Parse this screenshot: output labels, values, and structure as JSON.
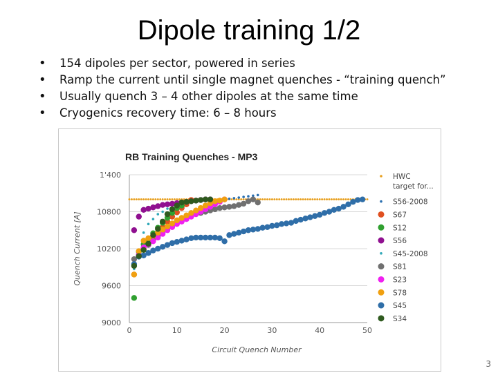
{
  "slide": {
    "title": "Dipole training 1/2",
    "bullets": [
      "154 dipoles per sector, powered in series",
      "Ramp the current until single magnet quenches -  “training quench”",
      "Usually quench 3 – 4 other dipoles at the same time",
      "Cryogenics recovery time:  6 – 8 hours"
    ],
    "page_number": "3"
  },
  "chart_data": {
    "type": "scatter",
    "title": "RB Training Quenches - MP3",
    "xlabel": "Circuit Quench Number",
    "ylabel": "Quench Current [A]",
    "xlim": [
      0,
      50
    ],
    "ylim": [
      9000,
      11400
    ],
    "xticks": [
      "0",
      "10",
      "20",
      "30",
      "40",
      "50"
    ],
    "yticks": [
      "9000",
      "9600",
      "10200",
      "10800",
      "11400"
    ],
    "ytick_labels": [
      "9000",
      "9600",
      "10200",
      "10800",
      "1'400"
    ],
    "grid": true,
    "legend_position": "right",
    "series": [
      {
        "name": "HWC target for...",
        "color": "#e8a020",
        "style": "dotted-line",
        "x": [
          0,
          50
        ],
        "y": [
          11000,
          11000
        ]
      },
      {
        "name": "S56-2008",
        "color": "#2a6fb0",
        "style": "small",
        "x": [
          19,
          20,
          21,
          22,
          23,
          24,
          25,
          26,
          27
        ],
        "y": [
          10980,
          11000,
          11010,
          11020,
          11030,
          11040,
          11050,
          11060,
          11070
        ]
      },
      {
        "name": "S67",
        "color": "#e05020",
        "style": "large",
        "x": [
          1,
          2,
          3,
          4,
          5,
          6,
          7,
          8,
          9,
          10,
          11,
          12,
          13
        ],
        "y": [
          9780,
          10080,
          10200,
          10300,
          10380,
          10460,
          10550,
          10640,
          10720,
          10790,
          10860,
          10920,
          10990
        ]
      },
      {
        "name": "S12",
        "color": "#30a030",
        "style": "large",
        "x": [
          1,
          2,
          3,
          4,
          5,
          6,
          7,
          8,
          9,
          10,
          11,
          12
        ],
        "y": [
          9400,
          10150,
          10270,
          10330,
          10450,
          10540,
          10620,
          10700,
          10780,
          10860,
          10900,
          10960
        ]
      },
      {
        "name": "S56",
        "color": "#901090",
        "style": "large",
        "x": [
          1,
          2,
          3,
          4,
          5,
          6,
          7,
          8,
          9,
          10,
          11,
          12,
          13,
          14,
          15,
          16,
          17
        ],
        "y": [
          10500,
          10720,
          10830,
          10850,
          10870,
          10890,
          10910,
          10920,
          10930,
          10940,
          10950,
          10960,
          10970,
          10980,
          10990,
          11000,
          11000
        ]
      },
      {
        "name": "S45-2008",
        "color": "#30a8b8",
        "style": "small",
        "x": [
          1,
          2,
          3,
          4,
          5,
          6,
          7,
          8
        ],
        "y": [
          9870,
          10120,
          10460,
          10600,
          10680,
          10760,
          10800,
          10850
        ]
      },
      {
        "name": "S81",
        "color": "#707070",
        "style": "large",
        "x": [
          1,
          2,
          3,
          4,
          5,
          6,
          7,
          8,
          9,
          10,
          11,
          12,
          13,
          14,
          15,
          16,
          17,
          18,
          19,
          20,
          21,
          22,
          23,
          24,
          25,
          26,
          27
        ],
        "y": [
          10030,
          10080,
          10180,
          10260,
          10330,
          10400,
          10470,
          10530,
          10580,
          10620,
          10660,
          10700,
          10730,
          10760,
          10780,
          10800,
          10820,
          10840,
          10860,
          10870,
          10880,
          10890,
          10910,
          10930,
          10970,
          11000,
          10950
        ]
      },
      {
        "name": "S23",
        "color": "#f020f0",
        "style": "large",
        "x": [
          2,
          3,
          4,
          5,
          6,
          7,
          8,
          9,
          10,
          11,
          12,
          13,
          14,
          15,
          16,
          17,
          18,
          19,
          20
        ],
        "y": [
          10100,
          10220,
          10270,
          10320,
          10380,
          10440,
          10500,
          10550,
          10600,
          10640,
          10680,
          10720,
          10760,
          10800,
          10840,
          10880,
          10920,
          10960,
          11000
        ]
      },
      {
        "name": "S78",
        "color": "#f0a010",
        "style": "large",
        "x": [
          1,
          2,
          3,
          4,
          5,
          6,
          7,
          8,
          9,
          10,
          11,
          12,
          13,
          14,
          15,
          16,
          17,
          18,
          19,
          20
        ],
        "y": [
          9780,
          10160,
          10330,
          10370,
          10410,
          10460,
          10510,
          10560,
          10610,
          10660,
          10700,
          10740,
          10780,
          10820,
          10860,
          10900,
          10940,
          10970,
          10980,
          11000
        ]
      },
      {
        "name": "S45",
        "color": "#2f6ea8",
        "style": "large",
        "x": [
          1,
          2,
          3,
          4,
          5,
          6,
          7,
          8,
          9,
          10,
          11,
          12,
          13,
          14,
          15,
          16,
          17,
          18,
          19,
          20,
          21,
          22,
          23,
          24,
          25,
          26,
          27,
          28,
          29,
          30,
          31,
          32,
          33,
          34,
          35,
          36,
          37,
          38,
          39,
          40,
          41,
          42,
          43,
          44,
          45,
          46,
          47,
          48,
          49
        ],
        "y": [
          9950,
          10070,
          10090,
          10130,
          10170,
          10200,
          10230,
          10260,
          10290,
          10310,
          10330,
          10350,
          10370,
          10380,
          10380,
          10380,
          10380,
          10380,
          10370,
          10320,
          10420,
          10440,
          10460,
          10480,
          10500,
          10510,
          10520,
          10540,
          10550,
          10570,
          10580,
          10600,
          10610,
          10620,
          10650,
          10670,
          10690,
          10710,
          10730,
          10750,
          10780,
          10800,
          10830,
          10850,
          10880,
          10920,
          10960,
          10990,
          11000
        ]
      },
      {
        "name": "S34",
        "color": "#2f5a1f",
        "style": "large",
        "x": [
          1,
          2,
          3,
          4,
          5,
          6,
          7,
          8,
          9,
          10,
          11,
          12,
          13,
          14,
          15,
          16,
          17
        ],
        "y": [
          9920,
          10080,
          10180,
          10280,
          10420,
          10520,
          10640,
          10760,
          10840,
          10900,
          10950,
          10960,
          10970,
          10980,
          10990,
          11000,
          11000
        ]
      }
    ]
  }
}
